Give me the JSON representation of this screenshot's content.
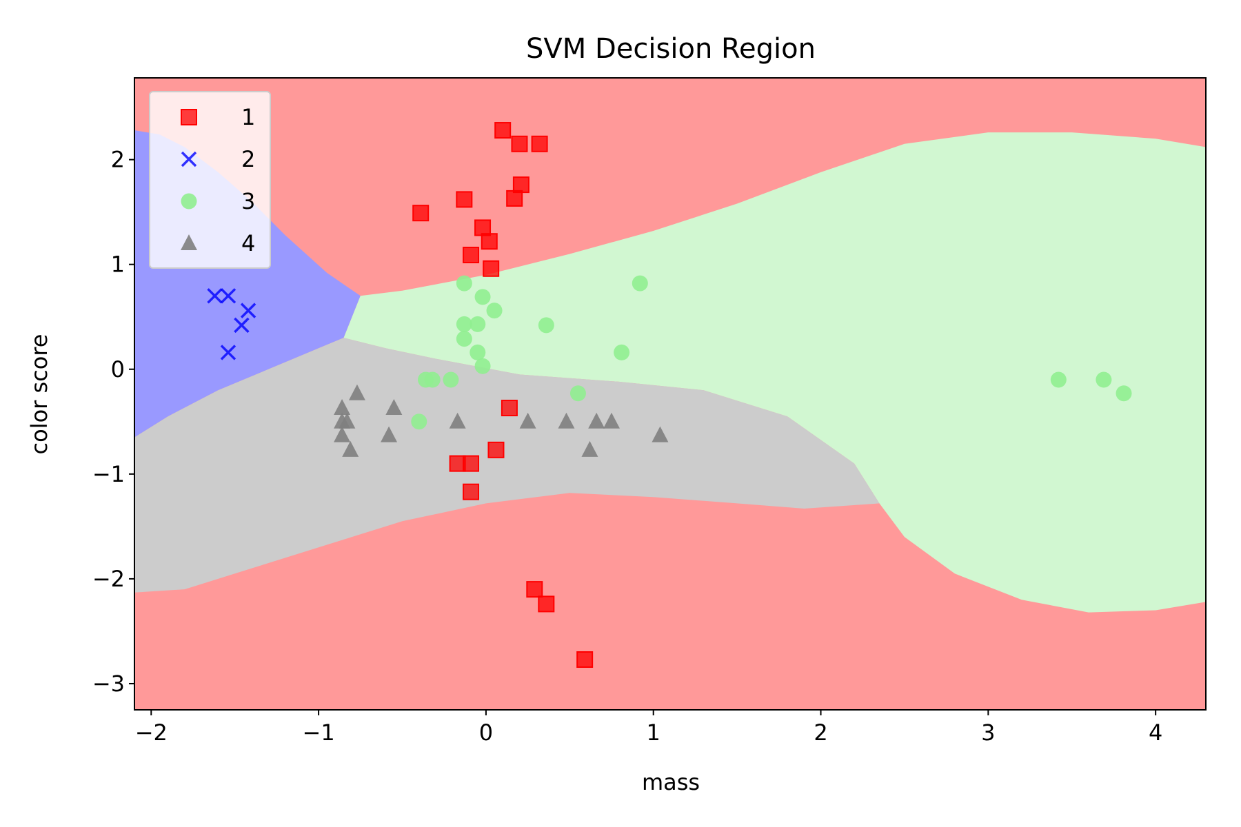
{
  "chart_data": {
    "type": "scatter",
    "title": "SVM Decision Region",
    "xlabel": "mass",
    "ylabel": "color score",
    "xlim": [
      -2.1,
      4.3
    ],
    "ylim": [
      -3.25,
      2.78
    ],
    "xticks": [
      -2,
      -1,
      0,
      1,
      2,
      3,
      4
    ],
    "xtick_labels": [
      "−2",
      "−1",
      "0",
      "1",
      "2",
      "3",
      "4"
    ],
    "yticks": [
      -3,
      -2,
      -1,
      0,
      1,
      2
    ],
    "ytick_labels": [
      "−3",
      "−2",
      "−1",
      "0",
      "1",
      "2"
    ],
    "grid": false,
    "legend_position": "top-left",
    "background_class": "1",
    "regions": [
      {
        "class": "2",
        "color": "#9999ff",
        "polygon": [
          [
            -2.1,
            2.28
          ],
          [
            -1.95,
            2.24
          ],
          [
            -1.8,
            2.12
          ],
          [
            -1.6,
            1.88
          ],
          [
            -1.4,
            1.6
          ],
          [
            -1.2,
            1.28
          ],
          [
            -0.95,
            0.92
          ],
          [
            -0.75,
            0.7
          ],
          [
            -0.85,
            0.3
          ],
          [
            -1.0,
            0.2
          ],
          [
            -1.3,
            0.0
          ],
          [
            -1.6,
            -0.2
          ],
          [
            -1.9,
            -0.45
          ],
          [
            -2.1,
            -0.65
          ]
        ]
      },
      {
        "class": "3",
        "color": "#d1f7d1",
        "polygon": [
          [
            -0.75,
            0.7
          ],
          [
            -0.5,
            0.75
          ],
          [
            0.0,
            0.9
          ],
          [
            0.5,
            1.1
          ],
          [
            1.0,
            1.32
          ],
          [
            1.5,
            1.58
          ],
          [
            2.0,
            1.88
          ],
          [
            2.5,
            2.15
          ],
          [
            3.0,
            2.26
          ],
          [
            3.5,
            2.26
          ],
          [
            4.0,
            2.2
          ],
          [
            4.3,
            2.12
          ],
          [
            4.3,
            -2.22
          ],
          [
            4.0,
            -2.3
          ],
          [
            3.6,
            -2.32
          ],
          [
            3.2,
            -2.2
          ],
          [
            2.8,
            -1.95
          ],
          [
            2.5,
            -1.6
          ],
          [
            2.35,
            -1.28
          ],
          [
            2.2,
            -0.9
          ],
          [
            1.8,
            -0.45
          ],
          [
            1.3,
            -0.2
          ],
          [
            0.8,
            -0.12
          ],
          [
            0.2,
            -0.05
          ],
          [
            -0.3,
            0.1
          ],
          [
            -0.6,
            0.2
          ],
          [
            -0.85,
            0.3
          ]
        ]
      },
      {
        "class": "4",
        "color": "#cccccc",
        "polygon": [
          [
            -2.1,
            -0.65
          ],
          [
            -1.9,
            -0.45
          ],
          [
            -1.6,
            -0.2
          ],
          [
            -1.3,
            0.0
          ],
          [
            -1.0,
            0.2
          ],
          [
            -0.85,
            0.3
          ],
          [
            -0.6,
            0.2
          ],
          [
            -0.3,
            0.1
          ],
          [
            0.2,
            -0.05
          ],
          [
            0.8,
            -0.12
          ],
          [
            1.3,
            -0.2
          ],
          [
            1.8,
            -0.45
          ],
          [
            2.2,
            -0.9
          ],
          [
            2.35,
            -1.28
          ],
          [
            1.9,
            -1.33
          ],
          [
            1.5,
            -1.28
          ],
          [
            1.0,
            -1.22
          ],
          [
            0.5,
            -1.18
          ],
          [
            0.0,
            -1.28
          ],
          [
            -0.5,
            -1.45
          ],
          [
            -1.0,
            -1.7
          ],
          [
            -1.5,
            -1.95
          ],
          [
            -1.8,
            -2.1
          ],
          [
            -2.1,
            -2.13
          ]
        ]
      }
    ],
    "series": [
      {
        "name": "1",
        "marker": "square",
        "color": "#ff0000",
        "background": "#ff9999",
        "points": [
          [
            0.1,
            2.28
          ],
          [
            0.2,
            2.15
          ],
          [
            0.32,
            2.15
          ],
          [
            0.21,
            1.76
          ],
          [
            0.17,
            1.63
          ],
          [
            -0.13,
            1.62
          ],
          [
            -0.39,
            1.49
          ],
          [
            -0.02,
            1.35
          ],
          [
            0.02,
            1.22
          ],
          [
            -0.09,
            1.09
          ],
          [
            0.03,
            0.96
          ],
          [
            0.14,
            -0.37
          ],
          [
            0.06,
            -0.77
          ],
          [
            -0.17,
            -0.9
          ],
          [
            -0.09,
            -0.9
          ],
          [
            -0.09,
            -1.17
          ],
          [
            0.29,
            -2.1
          ],
          [
            0.36,
            -2.24
          ],
          [
            0.59,
            -2.77
          ]
        ]
      },
      {
        "name": "2",
        "marker": "x",
        "color": "#0000ff",
        "points": [
          [
            -1.62,
            0.7
          ],
          [
            -1.54,
            0.7
          ],
          [
            -1.42,
            0.56
          ],
          [
            -1.46,
            0.42
          ],
          [
            -1.54,
            0.16
          ]
        ]
      },
      {
        "name": "3",
        "marker": "circle",
        "color": "#90ee90",
        "points": [
          [
            -0.13,
            0.82
          ],
          [
            0.92,
            0.82
          ],
          [
            -0.02,
            0.69
          ],
          [
            0.05,
            0.56
          ],
          [
            -0.13,
            0.43
          ],
          [
            -0.05,
            0.43
          ],
          [
            0.36,
            0.42
          ],
          [
            -0.13,
            0.29
          ],
          [
            -0.05,
            0.16
          ],
          [
            0.81,
            0.16
          ],
          [
            -0.02,
            0.03
          ],
          [
            -0.36,
            -0.1
          ],
          [
            -0.32,
            -0.1
          ],
          [
            -0.21,
            -0.1
          ],
          [
            0.55,
            -0.23
          ],
          [
            -0.4,
            -0.5
          ],
          [
            3.42,
            -0.1
          ],
          [
            3.69,
            -0.1
          ],
          [
            3.81,
            -0.23
          ]
        ]
      },
      {
        "name": "4",
        "marker": "triangle",
        "color": "#808080",
        "points": [
          [
            -0.77,
            -0.23
          ],
          [
            -0.86,
            -0.37
          ],
          [
            -0.55,
            -0.37
          ],
          [
            -0.86,
            -0.5
          ],
          [
            -0.83,
            -0.5
          ],
          [
            -0.17,
            -0.5
          ],
          [
            0.25,
            -0.5
          ],
          [
            0.48,
            -0.5
          ],
          [
            0.66,
            -0.5
          ],
          [
            0.75,
            -0.5
          ],
          [
            -0.86,
            -0.63
          ],
          [
            -0.58,
            -0.63
          ],
          [
            1.04,
            -0.63
          ],
          [
            -0.81,
            -0.77
          ],
          [
            0.62,
            -0.77
          ]
        ]
      }
    ]
  }
}
